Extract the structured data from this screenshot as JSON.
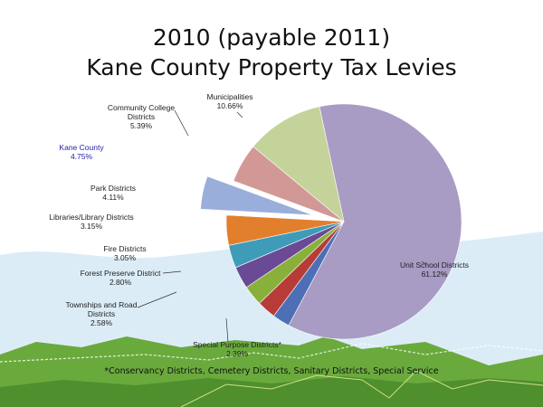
{
  "title": {
    "line1": "2010 (payable 2011)",
    "line2": "Kane County Property Tax Levies"
  },
  "footnote": "*Conservancy Districts, Cemetery Districts, Sanitary Districts, Special Service",
  "colors": {
    "sky": "#dcecf7",
    "grass": "#6aaa3d",
    "grass_dark": "#4f8f2d"
  },
  "chart_data": {
    "type": "pie",
    "title": "2010 (payable 2011) Kane County Property Tax Levies",
    "unit": "%",
    "slices": [
      {
        "label": "Unit School Districts",
        "value": 61.12,
        "display": "61.12%",
        "color": "#a89bc4",
        "exploded": false
      },
      {
        "label": "Special Purpose Districts*",
        "value": 2.39,
        "display": "2.39%",
        "color": "#4d6fb5",
        "exploded": false
      },
      {
        "label": "Townships and Road Districts",
        "value": 2.58,
        "display": "2.58%",
        "color": "#b73c38",
        "exploded": false
      },
      {
        "label": "Forest Preserve District",
        "value": 2.8,
        "display": "2.80%",
        "color": "#8ab03c",
        "exploded": false
      },
      {
        "label": "Fire Districts",
        "value": 3.05,
        "display": "3.05%",
        "color": "#6a4a94",
        "exploded": false
      },
      {
        "label": "Libraries/Library Districts",
        "value": 3.15,
        "display": "3.15%",
        "color": "#3e9cb8",
        "exploded": false
      },
      {
        "label": "Park Districts",
        "value": 4.11,
        "display": "4.11%",
        "color": "#e27f2d",
        "exploded": false
      },
      {
        "label": "Kane County",
        "value": 4.75,
        "display": "4.75%",
        "color": "#9aaedb",
        "exploded": true,
        "highlight": true
      },
      {
        "label": "Community College Districts",
        "value": 5.39,
        "display": "5.39%",
        "color": "#d29896",
        "exploded": false
      },
      {
        "label": "Municipalities",
        "value": 10.66,
        "display": "10.66%",
        "color": "#c3d39a",
        "exploded": false
      }
    ]
  }
}
